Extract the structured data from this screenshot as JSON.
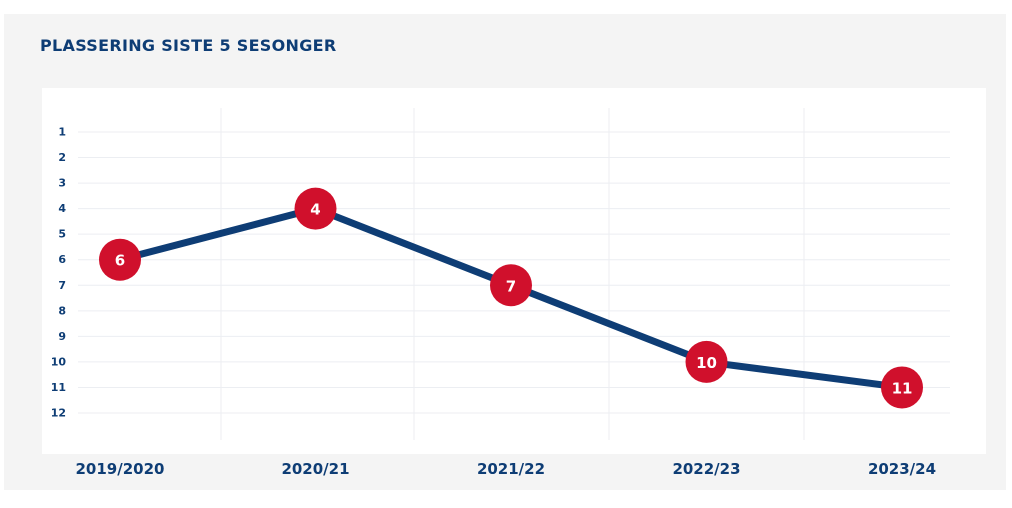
{
  "chart_data": {
    "type": "line",
    "title": "PLASSERING SISTE 5 SESONGER",
    "xlabel": "",
    "ylabel": "",
    "categories": [
      "2019/2020",
      "2020/21",
      "2021/22",
      "2022/23",
      "2023/24"
    ],
    "series": [
      {
        "values": [
          6,
          4,
          7,
          10,
          11
        ]
      }
    ],
    "yticks": [
      1,
      2,
      3,
      4,
      5,
      6,
      7,
      8,
      9,
      10,
      11,
      12
    ],
    "ylim": [
      1,
      12
    ],
    "y_inverted": true,
    "grid": true,
    "legend": "none",
    "colors": {
      "line": "#0e3d75",
      "marker": "#d0102c",
      "marker_text": "#ffffff",
      "text": "#0e3d75",
      "grid": "#eceef2",
      "panel": "#f4f4f4"
    }
  }
}
